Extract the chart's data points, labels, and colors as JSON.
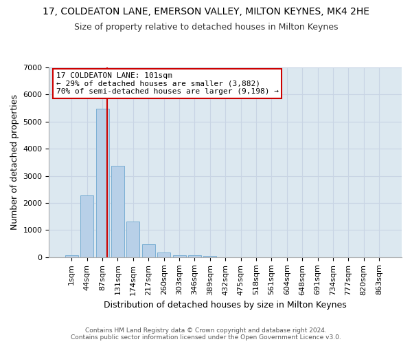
{
  "title": "17, COLDEATON LANE, EMERSON VALLEY, MILTON KEYNES, MK4 2HE",
  "subtitle": "Size of property relative to detached houses in Milton Keynes",
  "xlabel": "Distribution of detached houses by size in Milton Keynes",
  "ylabel": "Number of detached properties",
  "bar_labels": [
    "1sqm",
    "44sqm",
    "87sqm",
    "131sqm",
    "174sqm",
    "217sqm",
    "260sqm",
    "303sqm",
    "346sqm",
    "389sqm",
    "432sqm",
    "475sqm",
    "518sqm",
    "561sqm",
    "604sqm",
    "648sqm",
    "691sqm",
    "734sqm",
    "777sqm",
    "820sqm",
    "863sqm"
  ],
  "bar_values": [
    75,
    2280,
    5480,
    3380,
    1310,
    490,
    185,
    80,
    65,
    55,
    0,
    0,
    0,
    0,
    0,
    0,
    0,
    0,
    0,
    0,
    0
  ],
  "bar_color": "#b8d0e8",
  "bar_edge_color": "#7bafd4",
  "vline_color": "#cc0000",
  "vline_pos": 2.32,
  "annotation_text": "17 COLDEATON LANE: 101sqm\n← 29% of detached houses are smaller (3,882)\n70% of semi-detached houses are larger (9,198) →",
  "ylim": [
    0,
    7000
  ],
  "yticks": [
    0,
    1000,
    2000,
    3000,
    4000,
    5000,
    6000,
    7000
  ],
  "grid_color": "#c8d4e4",
  "bg_color": "#dce8f0",
  "plot_bg_color": "#dce8f0",
  "fig_bg_color": "#ffffff",
  "footer": "Contains HM Land Registry data © Crown copyright and database right 2024.\nContains public sector information licensed under the Open Government Licence v3.0.",
  "title_fontsize": 10,
  "subtitle_fontsize": 9,
  "xlabel_fontsize": 9,
  "ylabel_fontsize": 9,
  "annotation_fontsize": 8,
  "tick_fontsize": 8
}
